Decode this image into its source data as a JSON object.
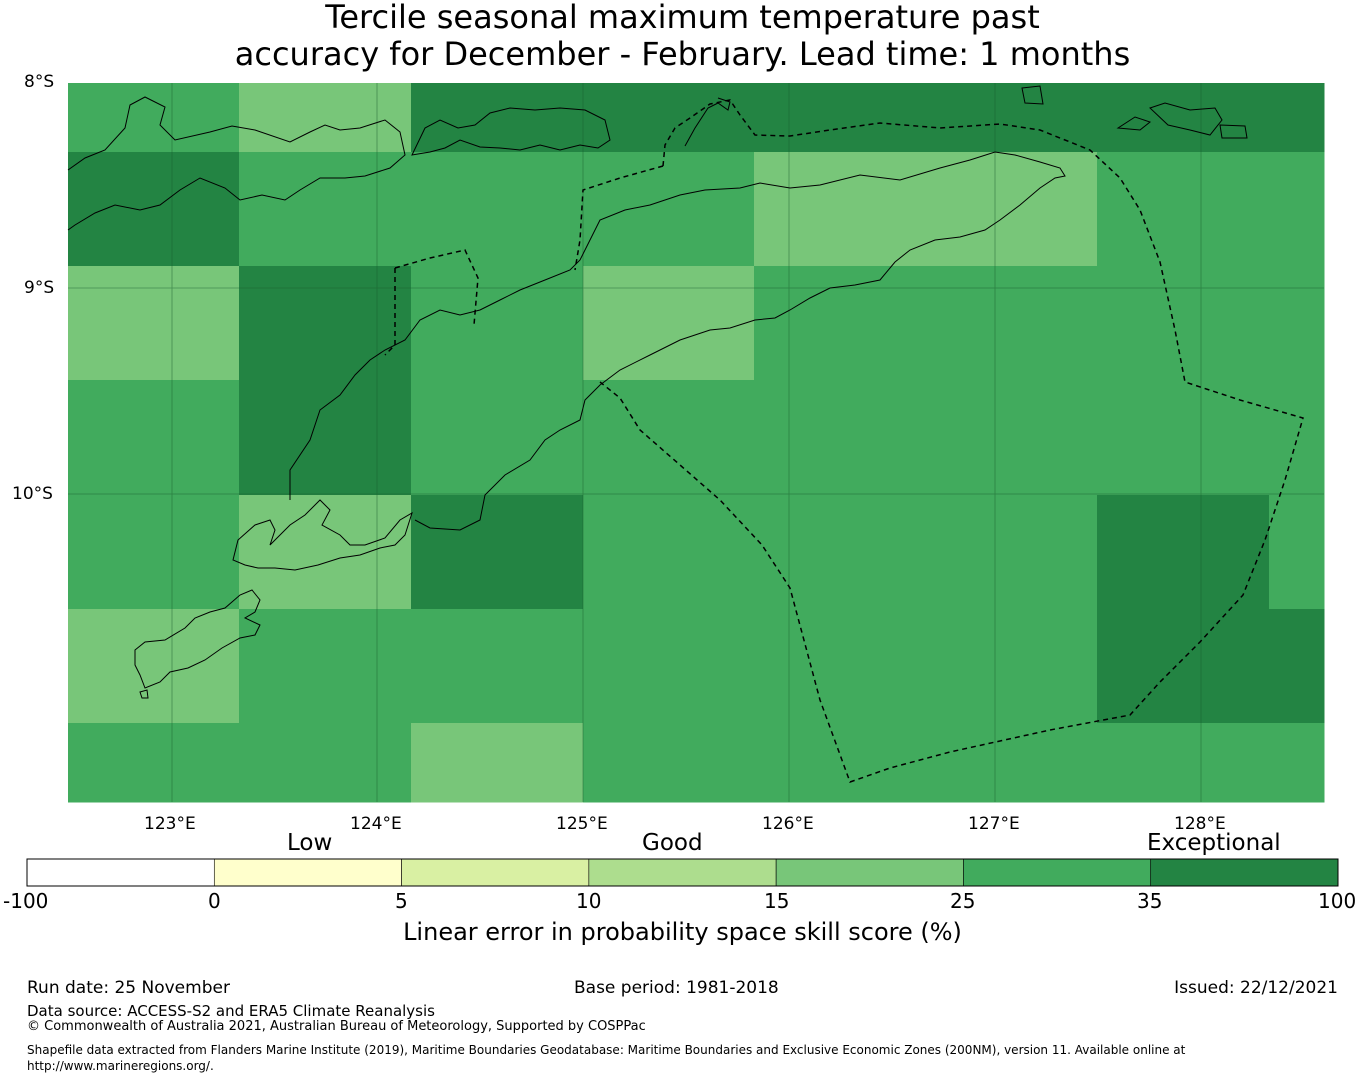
{
  "title": {
    "line1": "Tercile seasonal maximum temperature past",
    "line2": "accuracy for December - February. Lead time: 1 months"
  },
  "map": {
    "lat_labels": [
      "8°S",
      "9°S",
      "10°S"
    ],
    "lon_labels": [
      "123°E",
      "124°E",
      "125°E",
      "126°E",
      "127°E",
      "128°E"
    ],
    "colors": {
      "light": "#78c679",
      "mid": "#41ab5d",
      "dark": "#238443",
      "gridline": "#1a5c2e",
      "coast": "#000000"
    }
  },
  "colorbar": {
    "categories": [
      "Low",
      "Good",
      "Exceptional"
    ],
    "bins": [
      {
        "from": -100,
        "to": 0,
        "color": "#ffffff"
      },
      {
        "from": 0,
        "to": 5,
        "color": "#ffffcc"
      },
      {
        "from": 5,
        "to": 10,
        "color": "#d9f0a3"
      },
      {
        "from": 10,
        "to": 15,
        "color": "#addd8e"
      },
      {
        "from": 15,
        "to": 25,
        "color": "#78c679"
      },
      {
        "from": 25,
        "to": 35,
        "color": "#41ab5d"
      },
      {
        "from": 35,
        "to": 100,
        "color": "#238443"
      }
    ],
    "tick_labels": [
      "-100",
      "0",
      "5",
      "10",
      "15",
      "25",
      "35",
      "100"
    ],
    "label": "Linear error in probability space skill score (%)"
  },
  "footer": {
    "run_date": "Run date: 25 November",
    "base_period": "Base period: 1981-2018",
    "issued": "Issued: 22/12/2021",
    "data_source": "Data source: ACCESS-S2 and ERA5 Climate Reanalysis",
    "copyright": "© Commonwealth of Australia 2021, Australian Bureau of Meteorology, Supported by COSPPac",
    "shapefile_line1": "Shapefile data extracted from Flanders Marine Institute (2019), Maritime Boundaries Geodatabase: Maritime Boundaries and Exclusive Economic Zones (200NM), version 11. Available online at",
    "shapefile_line2": "http://www.marineregions.org/."
  }
}
